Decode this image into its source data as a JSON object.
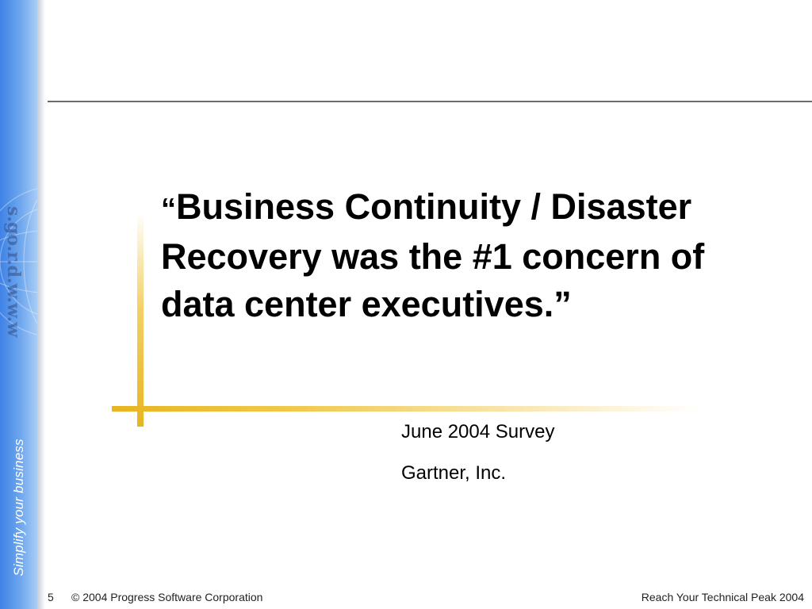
{
  "sidebar": {
    "tagline": "Simplify your business"
  },
  "slide": {
    "quote_open": "“",
    "quote": "Business Continuity / Disaster Recovery was the #1 concern of data center executives.”",
    "source_lines": [
      "June 2004 Survey",
      "Gartner, Inc."
    ]
  },
  "footer": {
    "page_number": "5",
    "copyright": "© 2004 Progress Software Corporation",
    "event": "Reach Your Technical Peak 2004"
  },
  "colors": {
    "sidebar_blue": "#3f82e6",
    "accent_gold": "#e6b521",
    "rule_gray": "#6b6b6b"
  }
}
